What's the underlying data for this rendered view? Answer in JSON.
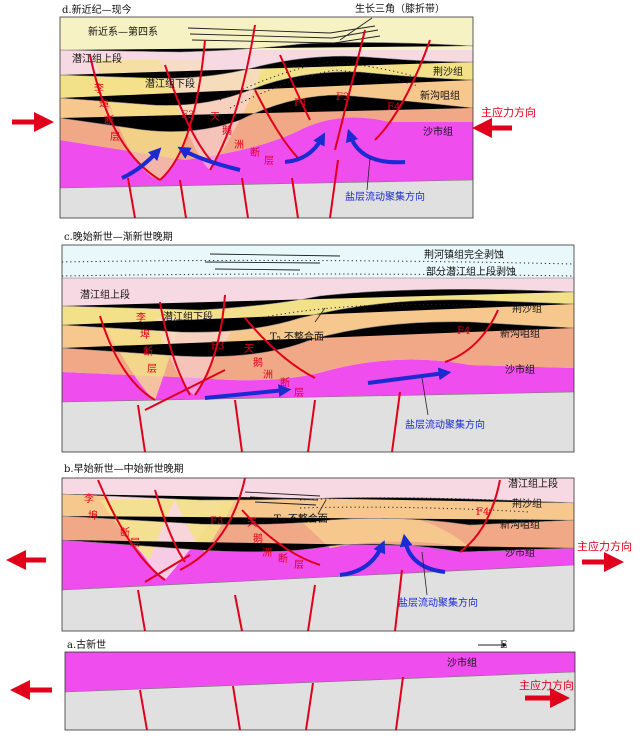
{
  "colors": {
    "neogene_quaternary": "#f7f2c4",
    "qianjiang_upper": "#f7d9e4",
    "qianjiang_lower": "#f3e189",
    "jingsha": "#f7c88e",
    "xingouzui": "#f1a887",
    "shashi": "#ef4dee",
    "basement": "#e0e0e0",
    "sky": "#e8f8fb",
    "fault": "#e0001b",
    "flow_arrow": "#1a2bd1",
    "stress_arrow": "#e0001b"
  },
  "panels": [
    {
      "id": "d",
      "title": "d.新近纪—现今",
      "labels": {
        "neogene": "新近系—第四系",
        "growth_triangle": "生长三角（膝折带）",
        "qianjiang_upper": "潜江组上段",
        "qianjiang_lower": "潜江组下段",
        "jingsha": "荆沙组",
        "xingouzui": "新沟咀组",
        "shashi": "沙市组",
        "salt_flow": "盐层流动聚集方向",
        "stress": "主应力方向"
      },
      "faults": {
        "li_chars": [
          "李",
          "埠",
          "断",
          "层"
        ],
        "tian_chars": [
          "天",
          "鹅",
          "洲",
          "断",
          "层"
        ],
        "f3": "F3",
        "f1": "F1",
        "f2": "F2",
        "f4": "F4"
      }
    },
    {
      "id": "c",
      "title": "c.晚始新世—渐新世晚期",
      "labels": {
        "jingheZhen": "荆河镇组完全剥蚀",
        "partial_erosion": "部分潜江组上段剥蚀",
        "qianjiang_upper": "潜江组上段",
        "qianjiang_lower": "潜江组下段",
        "unconformity": "T₅ 不整合面",
        "jingsha": "荆沙组",
        "xingouzui": "新沟咀组",
        "shashi": "沙市组",
        "salt_flow": "盐层流动聚集方向"
      },
      "faults": {
        "li_chars": [
          "李",
          "埠",
          "断",
          "层"
        ],
        "tian_chars": [
          "天",
          "鹅",
          "洲",
          "断",
          "层"
        ],
        "f3": "F3",
        "f4": "F4"
      }
    },
    {
      "id": "b",
      "title": "b.早始新世—中始新世晚期",
      "labels": {
        "qianjiang_upper": "潜江组上段",
        "jingsha": "荆沙组",
        "xingouzui": "新沟咀组",
        "shashi": "沙市组",
        "unconformity": "T₅ 不整合面",
        "salt_flow": "盐层流动聚集方向",
        "stress": "主应力方向"
      },
      "faults": {
        "li_chars": [
          "李",
          "埠",
          "断",
          "层"
        ],
        "tian_chars": [
          "天",
          "鹅",
          "洲",
          "断",
          "层"
        ],
        "f3": "F3",
        "f4": "F4"
      }
    },
    {
      "id": "a",
      "title": "a.古新世",
      "labels": {
        "shashi": "沙市组",
        "stress": "主应力方向",
        "east": "E"
      }
    }
  ]
}
